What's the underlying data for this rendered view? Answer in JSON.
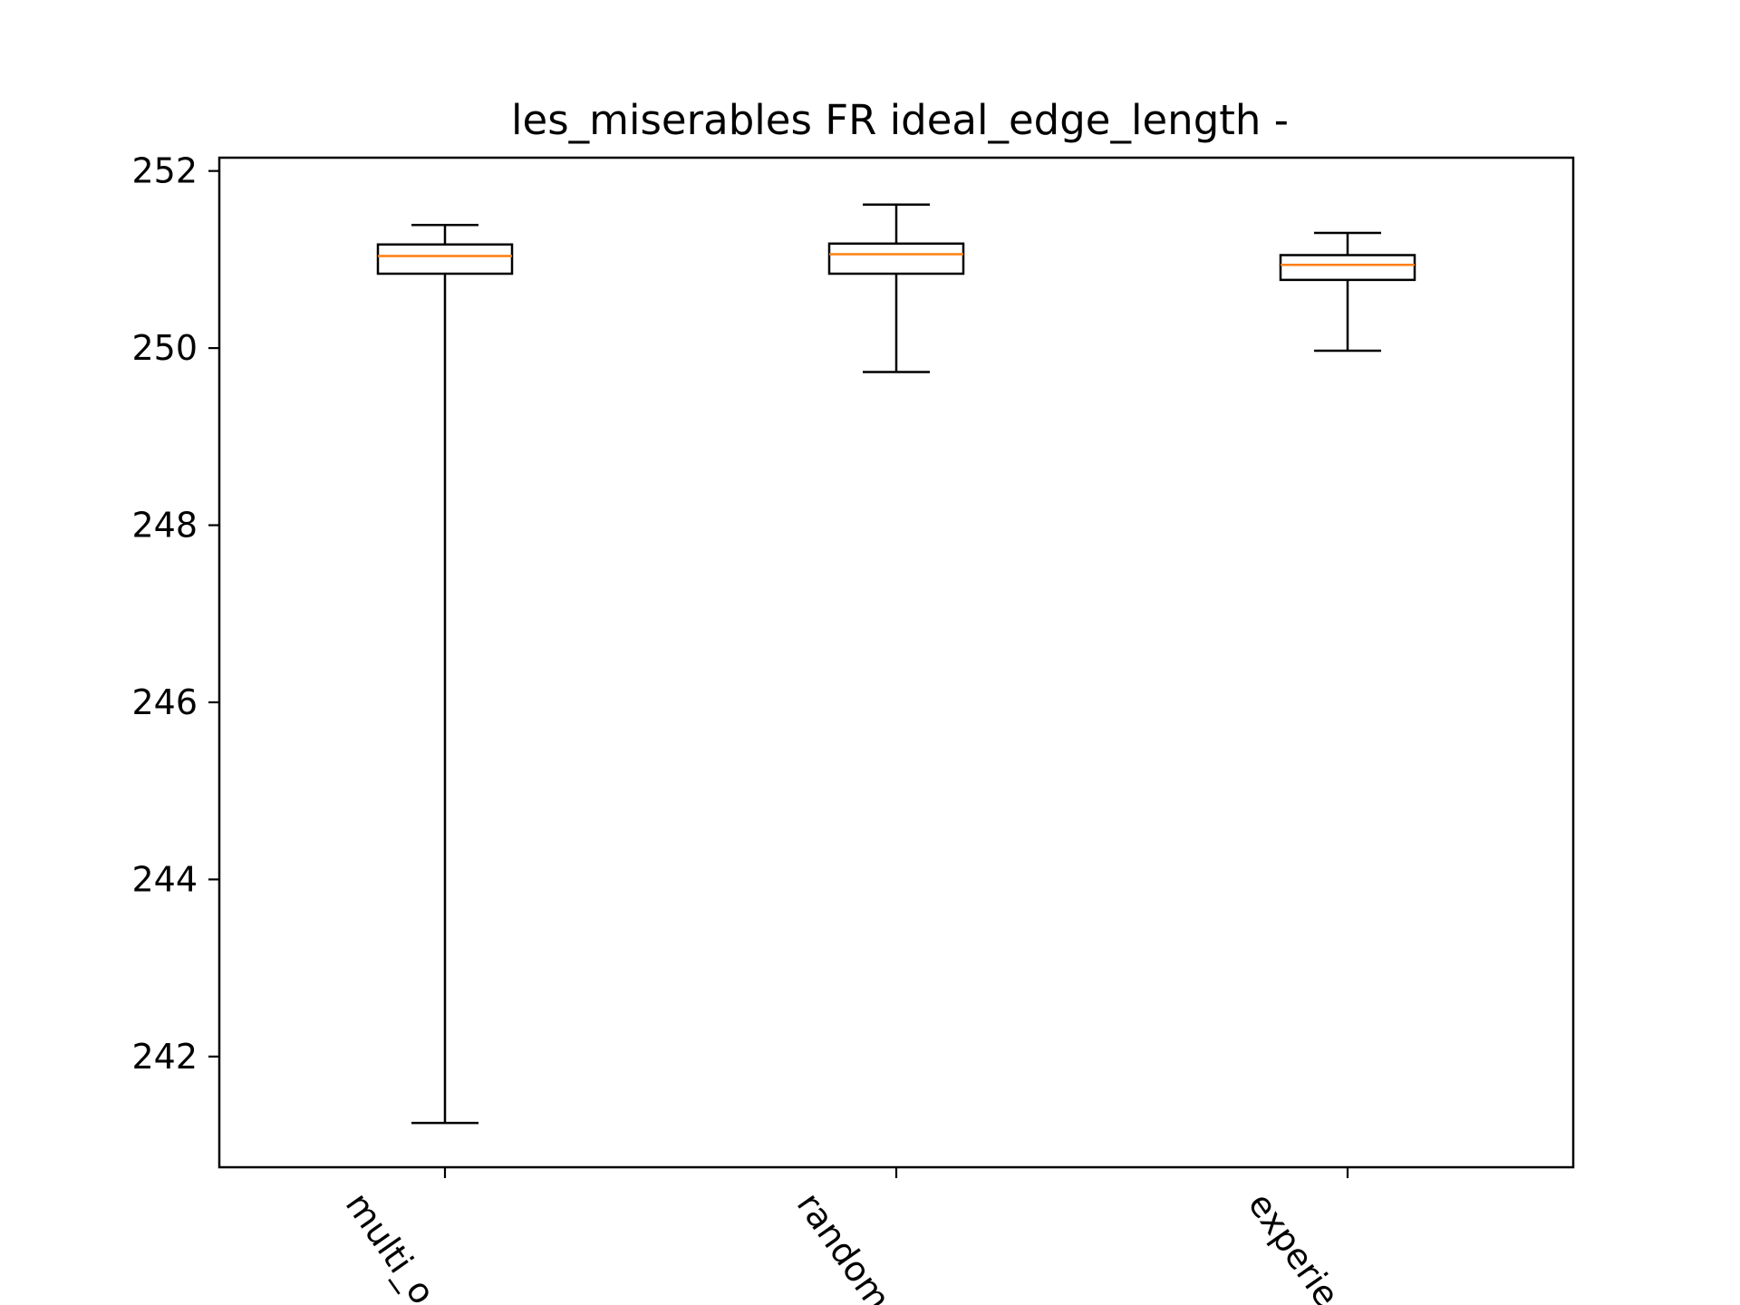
{
  "chart_data": {
    "type": "box",
    "title": "les_miserables FR ideal_edge_length -",
    "xlabel": "",
    "ylabel": "",
    "categories": [
      "multi_objective",
      "random",
      "experience"
    ],
    "category_labels_visible": [
      "multi_o",
      "random",
      "experie"
    ],
    "ylim": [
      240.75,
      252.15
    ],
    "yticks": [
      242,
      244,
      246,
      248,
      250,
      252
    ],
    "grid": false,
    "boxes": [
      {
        "category": "multi_objective",
        "whisker_low": 241.25,
        "q1": 250.84,
        "median": 251.04,
        "q3": 251.17,
        "whisker_high": 251.39
      },
      {
        "category": "random",
        "whisker_low": 249.73,
        "q1": 250.84,
        "median": 251.06,
        "q3": 251.18,
        "whisker_high": 251.62
      },
      {
        "category": "experience",
        "whisker_low": 249.97,
        "q1": 250.77,
        "median": 250.94,
        "q3": 251.05,
        "whisker_high": 251.3
      }
    ],
    "colors": {
      "box": "#000000",
      "median": "#ff7f0e",
      "axes": "#000000"
    }
  }
}
